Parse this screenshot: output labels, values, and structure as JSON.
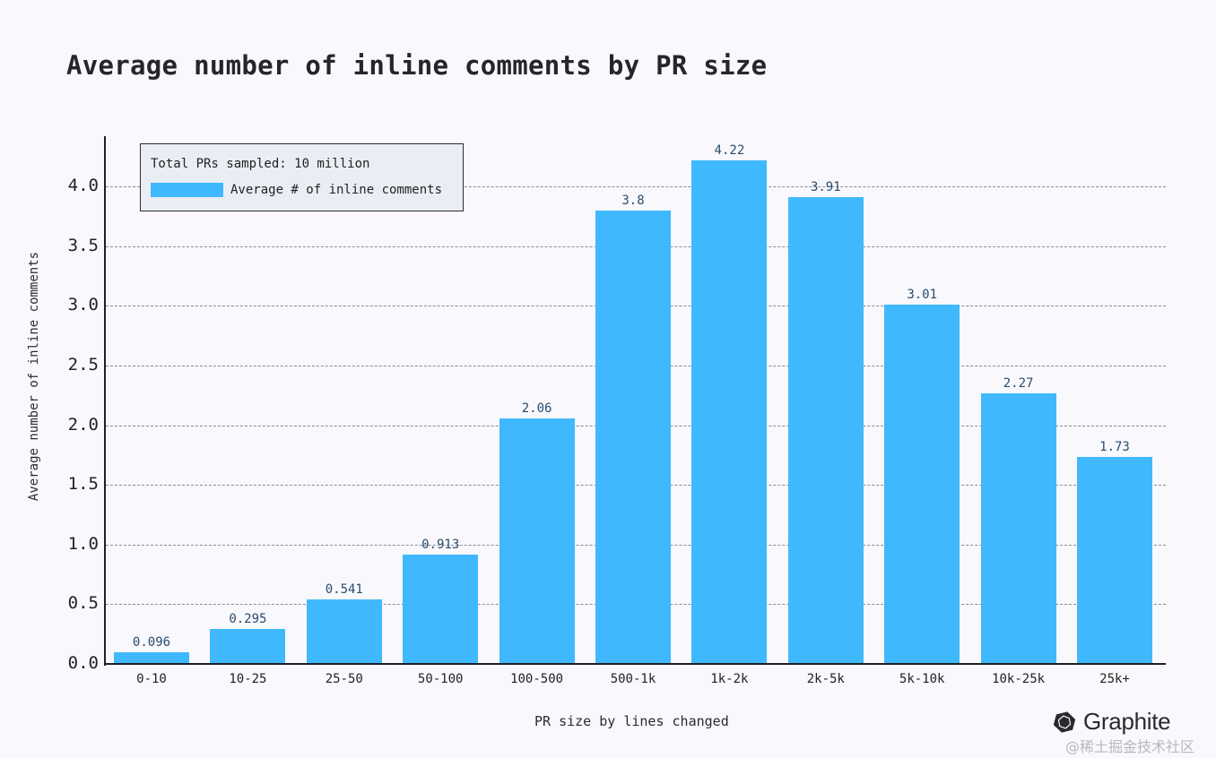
{
  "chart_data": {
    "type": "bar",
    "title": "Average number of inline comments by PR size",
    "xlabel": "PR size by lines changed",
    "ylabel": "Average number of inline comments",
    "categories": [
      "0-10",
      "10-25",
      "25-50",
      "50-100",
      "100-500",
      "500-1k",
      "1k-2k",
      "2k-5k",
      "5k-10k",
      "10k-25k",
      "25k+"
    ],
    "values": [
      0.096,
      0.295,
      0.541,
      0.913,
      2.06,
      3.8,
      4.22,
      3.91,
      3.01,
      2.27,
      1.73
    ],
    "value_labels": [
      "0.096",
      "0.295",
      "0.541",
      "0.913",
      "2.06",
      "3.8",
      "4.22",
      "3.91",
      "3.01",
      "2.27",
      "1.73"
    ],
    "series": [
      {
        "name": "Average # of inline comments",
        "color": "#40b8fd"
      }
    ],
    "ylim": [
      0,
      4.4
    ],
    "yticks": [
      "0.0",
      "0.5",
      "1.0",
      "1.5",
      "2.0",
      "2.5",
      "3.0",
      "3.5",
      "4.0"
    ],
    "grid": "horizontal dashed",
    "legend_position": "upper left",
    "annotation": "Total PRs sampled: 10 million"
  },
  "legend": {
    "title": "Total PRs sampled: 10 million",
    "entry": "Average # of inline comments"
  },
  "brand": {
    "name": "Graphite",
    "icon": "graphite-hexagon-logo"
  },
  "watermark": "@稀土掘金技术社区",
  "colors": {
    "bar": "#40b8fd",
    "background": "#f8f8fd",
    "label": "#2b4c6a"
  }
}
